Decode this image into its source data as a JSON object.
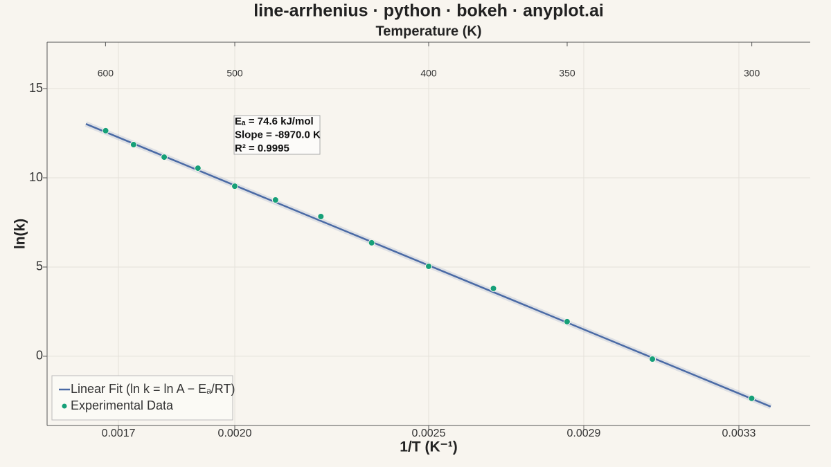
{
  "chart_data": {
    "type": "scatter",
    "title": "line-arrhenius · python · bokeh · anyplot.ai",
    "xlabel": "1/T (K⁻¹)",
    "ylabel": "ln(k)",
    "x2label": "Temperature (K)",
    "xlim": [
      0.001516,
      0.003484
    ],
    "ylim": [
      -3.88,
      17.6
    ],
    "xticks": [
      0.0017,
      {
        "value": 0.002,
        "label": "0.0020"
      },
      0.0025,
      0.0029,
      0.0033
    ],
    "yticks": [
      0,
      5,
      10,
      15
    ],
    "x2ticks": [
      600,
      500,
      400,
      350,
      300
    ],
    "grid": true,
    "legend": "bottom_left",
    "annotation": [
      "Eₐ = 74.6 kJ/mol",
      "Slope = -8970.0 K",
      "R² = 0.9995"
    ],
    "series": [
      {
        "name": "Linear Fit (ln k = ln A − Eₐ/RT)",
        "type": "line",
        "color": "#4a6aa5",
        "x": [
          0.001616,
          0.003382
        ],
        "values": [
          13.02,
          -2.82
        ]
      },
      {
        "name": "Experimental Data",
        "type": "scatter",
        "color": "#16a078",
        "x": [
          0.001667,
          0.001739,
          0.001818,
          0.001905,
          0.002,
          0.002105,
          0.002222,
          0.002353,
          0.0025,
          0.002667,
          0.002857,
          0.003077,
          0.003333
        ],
        "values": [
          12.64,
          11.86,
          11.16,
          10.54,
          9.53,
          8.76,
          7.83,
          6.36,
          5.04,
          3.8,
          1.94,
          -0.16,
          -2.36
        ]
      }
    ]
  }
}
